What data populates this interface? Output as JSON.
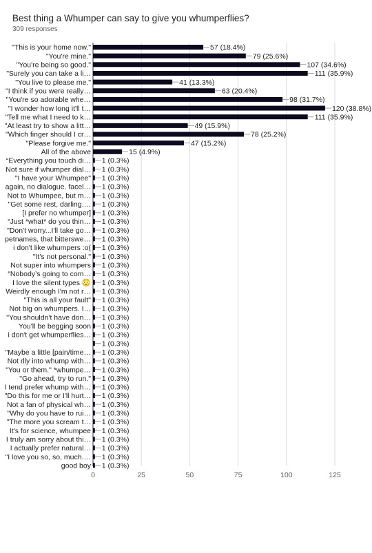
{
  "title": "Best thing a Whumper can say to give you whumperflies?",
  "subtitle": "309 responses",
  "colors": {
    "bar": "#0d0a1f",
    "grid": "#dadce0",
    "connector": "#9aa0a6"
  },
  "chart_data": {
    "type": "bar",
    "orientation": "horizontal",
    "categories": [
      "\"This is your home now.\"",
      "\"You're mine.\"",
      "\"You're being so good.\"",
      "\"Surely you can take a li…",
      "\"You live to please me.\"",
      "\"I think if you were really…",
      "\"You're so adorable whe…",
      "\"I wonder how long it'll t…",
      "\"Tell me what I need to k…",
      "\"At least try to show a litt…",
      "\"Which finger should I cr…",
      "\"Please forgive me.\"",
      "All of the above",
      "“Everything you touch di…",
      "Not sure if whumper dial…",
      "\"I have your Whumpee\"",
      "again, no dialogue. facel…",
      "Not to Whumpee, but m…",
      "\"Get some rest, darling.…",
      "[I prefer no whumper]",
      "“Just *what* do you thin…",
      "\"Don't worry...I'll take go…",
      "petnames, that bitterswe…",
      "i don't like whumpers :o(",
      "\"It's not personal.\"",
      "Not super into whumpers",
      "“Nobody’s going to com…",
      "I love the silent types 😳",
      "Weirdly enough I'm not r…",
      "\"This is all your fault\"",
      "Not big on whumpers. I…",
      "\"You shouldn't have don…",
      "You'll be begging soon",
      "i don't get whumperflies…",
      "",
      "\"Maybe a little [pain/time…",
      "Not rlly into whump with…",
      "\"You or them.\" *whumpe…",
      "\"Go ahead, try to run.\"",
      "I tend prefer whump with…",
      "\"Do this for me or I'll hurt…",
      "Not a fan of physical wh…",
      "\"Why do you have to rui…",
      "\"The more you scream t…",
      "It's for science, whumpee",
      "I truly am sorry about thi…",
      "I actually prefer natural…",
      "\"I love you so, so, much.…",
      "good boy"
    ],
    "values": [
      57,
      79,
      107,
      111,
      41,
      63,
      98,
      120,
      111,
      49,
      78,
      47,
      15,
      1,
      1,
      1,
      1,
      1,
      1,
      1,
      1,
      1,
      1,
      1,
      1,
      1,
      1,
      1,
      1,
      1,
      1,
      1,
      1,
      1,
      1,
      1,
      1,
      1,
      1,
      1,
      1,
      1,
      1,
      1,
      1,
      1,
      1,
      1,
      1
    ],
    "data_labels": [
      "57 (18.4%)",
      "79 (25.6%)",
      "107 (34.6%)",
      "111 (35.9%)",
      "41 (13.3%)",
      "63 (20.4%)",
      "98 (31.7%)",
      "120 (38.8%)",
      "111 (35.9%)",
      "49 (15.9%)",
      "78 (25.2%)",
      "47 (15.2%)",
      "15 (4.9%)",
      "1 (0.3%)",
      "1 (0.3%)",
      "1 (0.3%)",
      "1 (0.3%)",
      "1 (0.3%)",
      "1 (0.3%)",
      "1 (0.3%)",
      "1 (0.3%)",
      "1 (0.3%)",
      "1 (0.3%)",
      "1 (0.3%)",
      "1 (0.3%)",
      "1 (0.3%)",
      "1 (0.3%)",
      "1 (0.3%)",
      "1 (0.3%)",
      "1 (0.3%)",
      "1 (0.3%)",
      "1 (0.3%)",
      "1 (0.3%)",
      "1 (0.3%)",
      "1 (0.3%)",
      "1 (0.3%)",
      "1 (0.3%)",
      "1 (0.3%)",
      "1 (0.3%)",
      "1 (0.3%)",
      "1 (0.3%)",
      "1 (0.3%)",
      "1 (0.3%)",
      "1 (0.3%)",
      "1 (0.3%)",
      "1 (0.3%)",
      "1 (0.3%)",
      "1 (0.3%)",
      "1 (0.3%)"
    ],
    "xlim": [
      0,
      125
    ],
    "xticks": [
      0,
      25,
      50,
      75,
      100,
      125
    ],
    "grid": true
  }
}
